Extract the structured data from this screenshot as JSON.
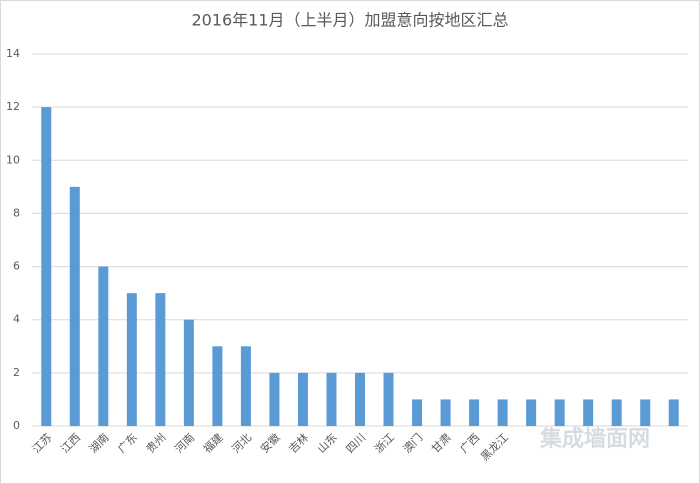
{
  "chart_data": {
    "type": "bar",
    "title": "2016年11月（上半月）加盟意向按地区汇总",
    "categories": [
      "江苏",
      "江西",
      "湖南",
      "广东",
      "贵州",
      "河南",
      "福建",
      "河北",
      "安徽",
      "吉林",
      "山东",
      "四川",
      "浙江",
      "澳门",
      "甘肃",
      "广西",
      "黑龙江",
      null,
      null,
      null,
      null,
      null,
      null
    ],
    "values": [
      12,
      9,
      6,
      5,
      5,
      4,
      3,
      3,
      2,
      2,
      2,
      2,
      2,
      1,
      1,
      1,
      1,
      1,
      1,
      1,
      1,
      1,
      1
    ],
    "color": "#5b9bd5",
    "ylim": [
      0,
      14
    ],
    "yticks": [
      0,
      2,
      4,
      6,
      8,
      10,
      12,
      14
    ],
    "grid": true
  },
  "watermark": "集成墙面网"
}
